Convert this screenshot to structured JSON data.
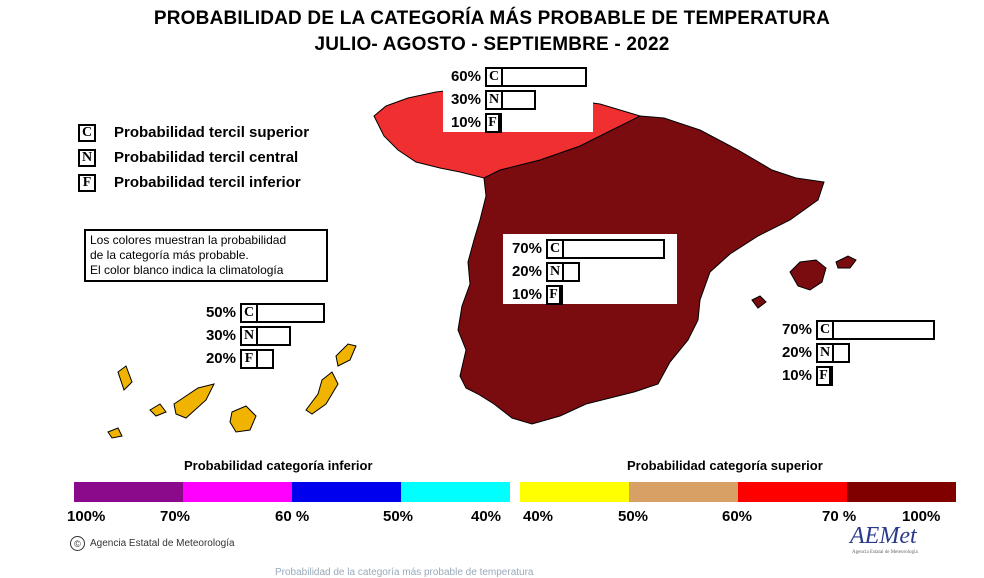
{
  "title": {
    "line1": "PROBABILIDAD DE LA CATEGORÍA MÁS PROBABLE DE TEMPERATURA",
    "line2": "JULIO- AGOSTO - SEPTIEMBRE - 2022"
  },
  "legend_cnf": [
    {
      "letter": "C",
      "label": "Probabilidad  tercil superior"
    },
    {
      "letter": "N",
      "label": "Probabilidad  tercil central"
    },
    {
      "letter": "F",
      "label": "Probabilidad  tercil inferior"
    }
  ],
  "note": {
    "line1": "Los colores muestran la probabilidad",
    "line2": "de la categoría más probable.",
    "line3": "El color blanco indica la climatología"
  },
  "regions": {
    "north": {
      "C": "60%",
      "N": "30%",
      "F": "10%",
      "C_value": 60,
      "N_value": 30,
      "F_value": 10,
      "color": "#f03030"
    },
    "peninsula": {
      "C": "70%",
      "N": "20%",
      "F": "10%",
      "C_value": 70,
      "N_value": 20,
      "F_value": 10,
      "color": "#7a0c10"
    },
    "balearics": {
      "C": "70%",
      "N": "20%",
      "F": "10%",
      "C_value": 70,
      "N_value": 20,
      "F_value": 10,
      "color": "#7a0c10"
    },
    "canarias": {
      "C": "50%",
      "N": "30%",
      "F": "20%",
      "C_value": 50,
      "N_value": 30,
      "F_value": 20,
      "color": "#f0b400"
    }
  },
  "bar_letters": {
    "C": "C",
    "N": "N",
    "F": "F"
  },
  "scale": {
    "inferior_title": "Probabilidad categoría inferior",
    "superior_title": "Probabilidad categoría superior",
    "inferior_colors": [
      "#8b0a8b",
      "#ff00ff",
      "#0000ee",
      "#00ffff"
    ],
    "superior_colors": [
      "#ffff00",
      "#d9a066",
      "#ff0000",
      "#800000"
    ],
    "ticks": [
      "100%",
      "70%",
      "60 %",
      "50%",
      "40%",
      "40%",
      "50%",
      "60%",
      "70 %",
      "100%"
    ]
  },
  "agency": {
    "copyright": "©",
    "name": "Agencia Estatal de Meteorología"
  },
  "logo": {
    "text": "AEMet",
    "subtitle": "Agencia Estatal de Meteorología"
  },
  "footer": "Probabilidad de la categoría más probable de temperatura"
}
